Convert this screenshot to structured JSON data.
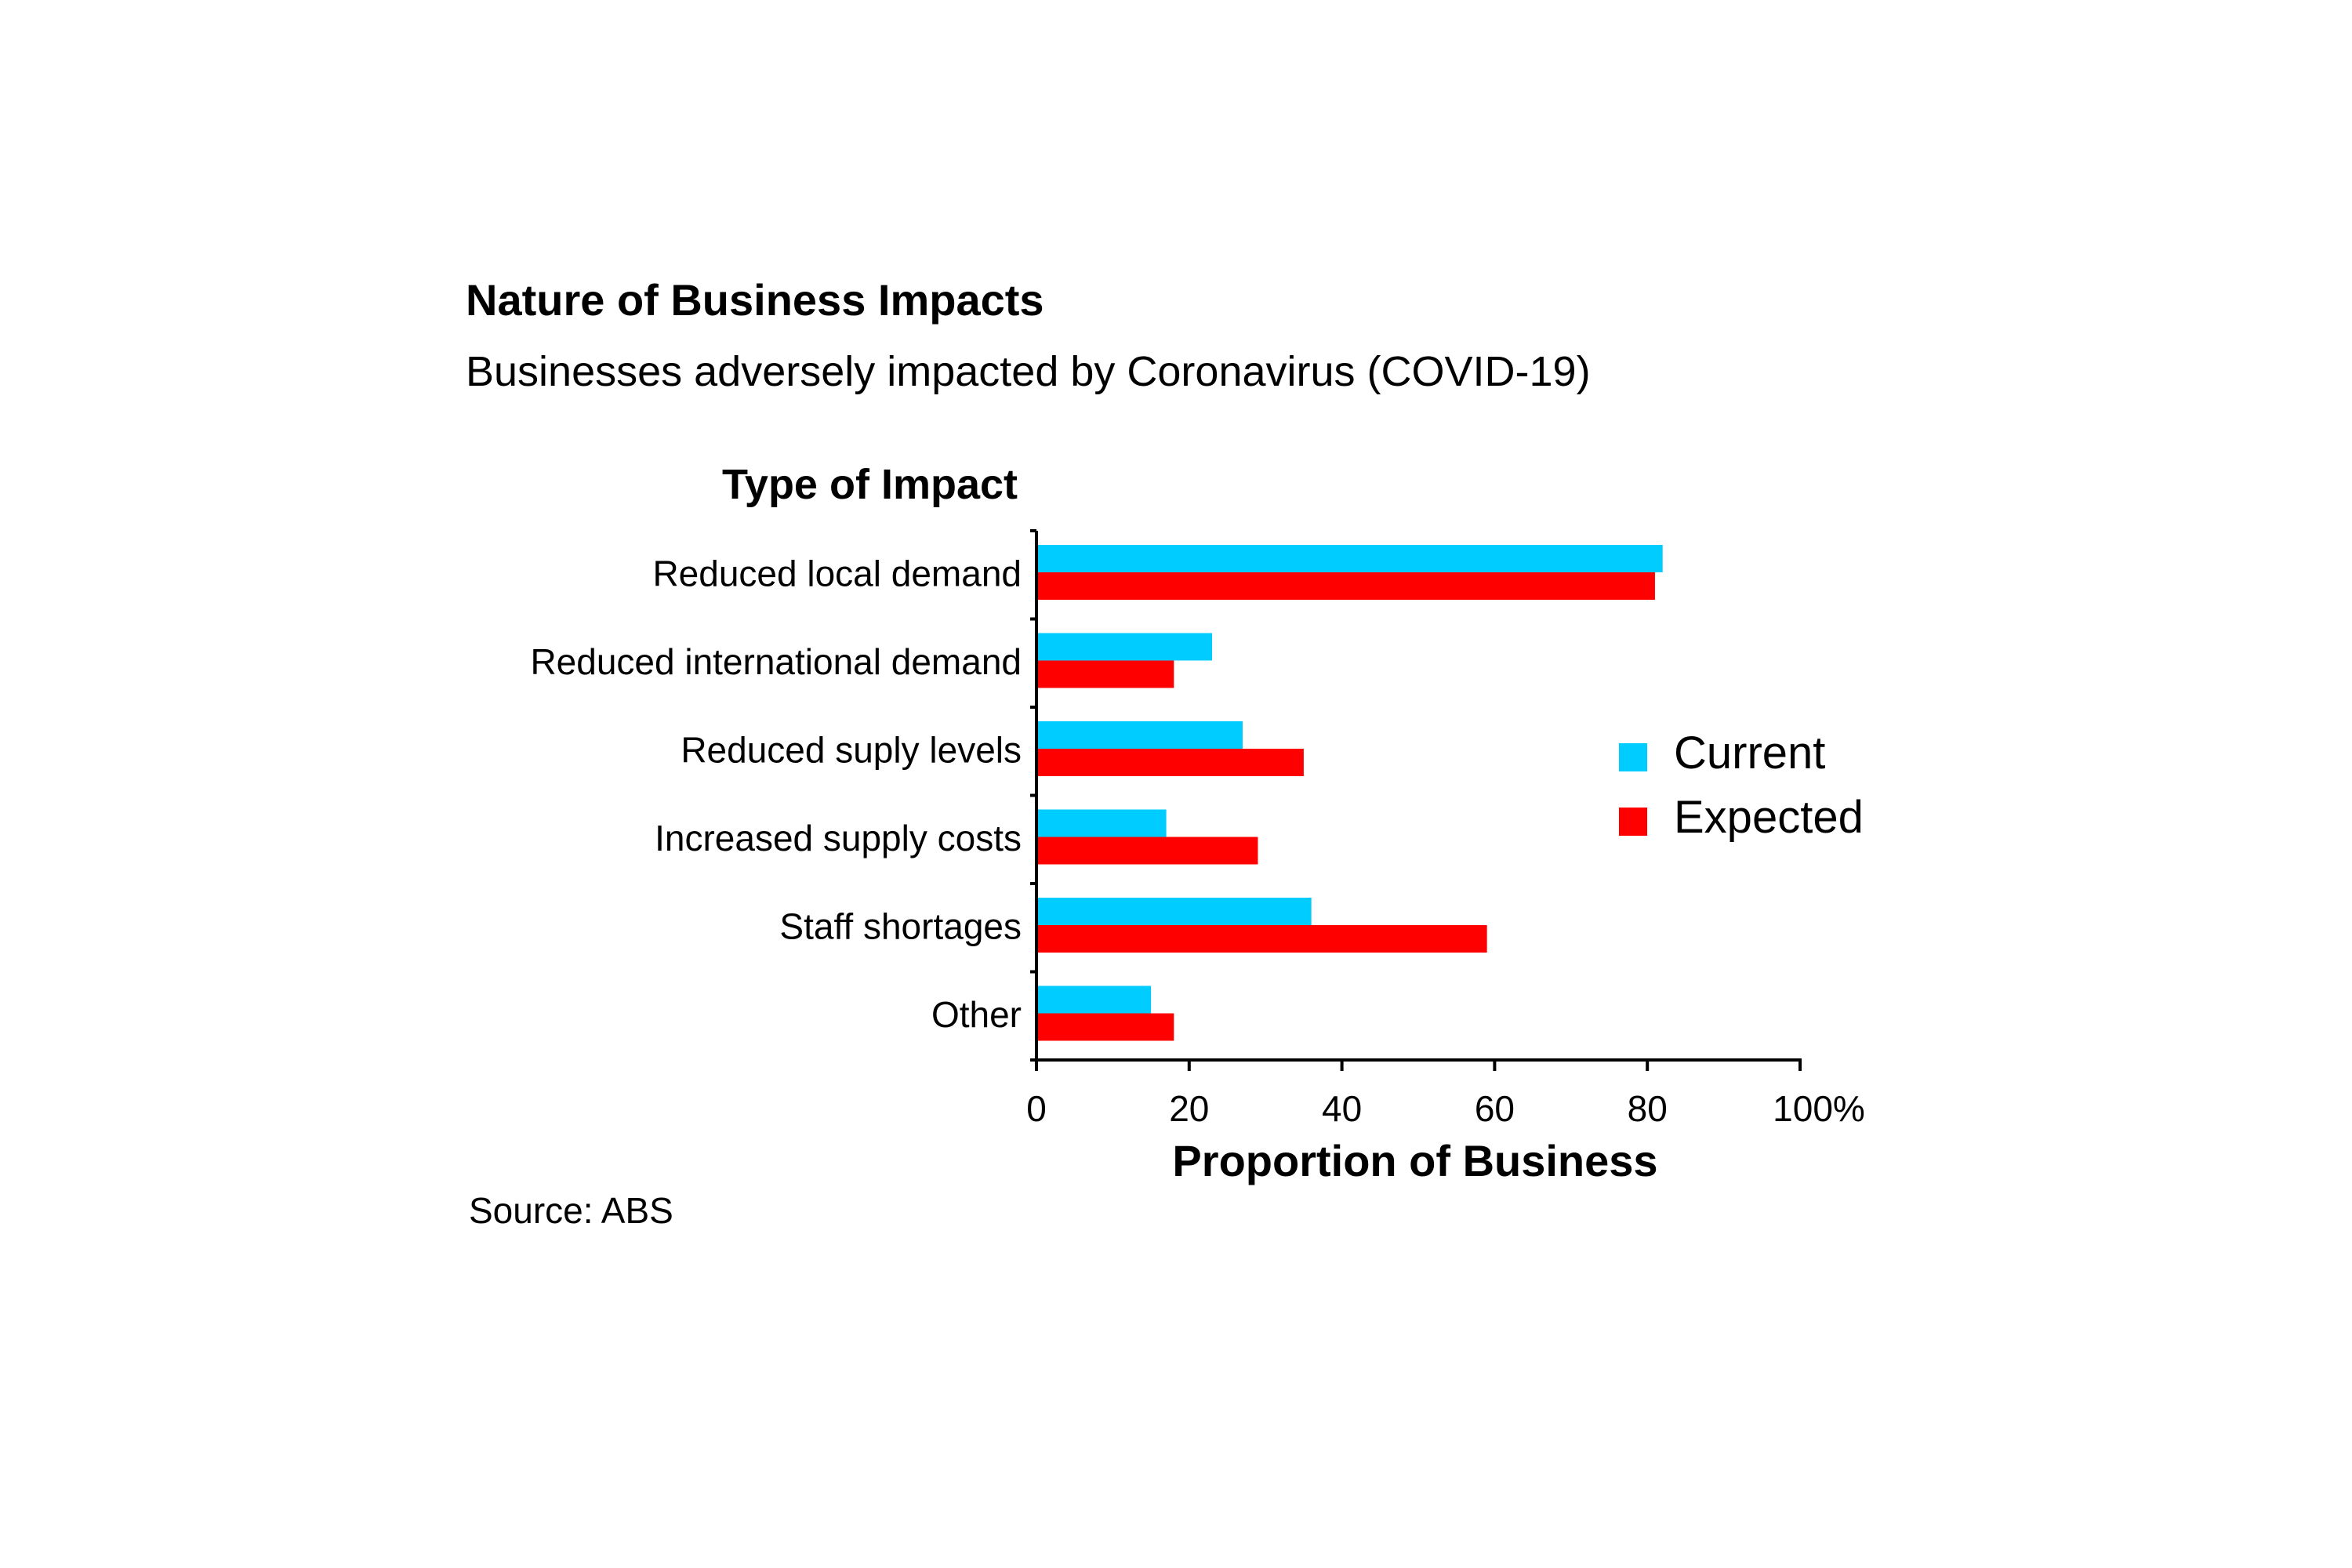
{
  "chart_data": {
    "type": "bar",
    "orientation": "horizontal",
    "title": "Nature of Business Impacts",
    "subtitle": "Businesses adversely impacted by Coronavirus (COVID-19)",
    "ylabel": "Type of Impact",
    "xlabel": "Proportion of Business",
    "categories": [
      "Reduced local demand",
      "Reduced international demand",
      "Reduced suply levels",
      "Increased supply costs",
      "Staff shortages",
      "Other"
    ],
    "series": [
      {
        "name": "Current",
        "color": "#00CCFF",
        "values": [
          82,
          23,
          27,
          17,
          36,
          15
        ]
      },
      {
        "name": "Expected",
        "color": "#FF0000",
        "values": [
          81,
          18,
          35,
          29,
          59,
          18
        ]
      }
    ],
    "xlim": [
      0,
      100
    ],
    "xticks": [
      "0",
      "20",
      "40",
      "60",
      "80",
      "100%"
    ],
    "grid": false,
    "legend_position": "right",
    "source": "Source: ABS"
  }
}
